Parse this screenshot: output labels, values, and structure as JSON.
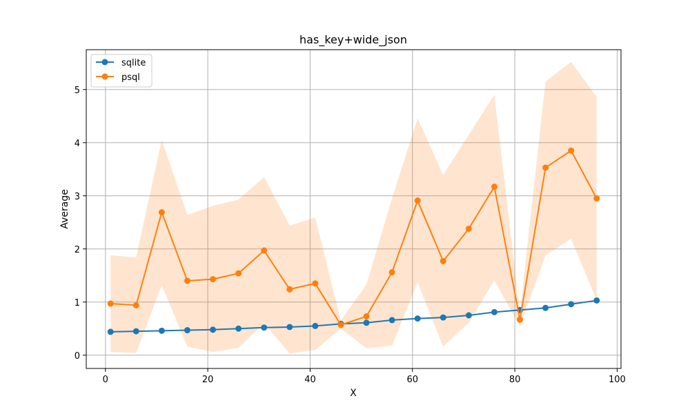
{
  "chart_data": {
    "type": "line",
    "title": "has_key+wide_json",
    "xlabel": "X",
    "ylabel": "Average",
    "xlim": [
      -3.75,
      100.75
    ],
    "ylim": [
      -0.25,
      5.75
    ],
    "xticks": [
      0,
      20,
      40,
      60,
      80,
      100
    ],
    "yticks": [
      0,
      1,
      2,
      3,
      4,
      5
    ],
    "grid": true,
    "legend_position": "top-left",
    "x": [
      1,
      6,
      11,
      16,
      21,
      26,
      31,
      36,
      41,
      46,
      51,
      56,
      61,
      66,
      71,
      76,
      81,
      86,
      91,
      96
    ],
    "series": [
      {
        "name": "sqlite",
        "color": "#1f77b4",
        "values": [
          0.44,
          0.45,
          0.46,
          0.47,
          0.48,
          0.5,
          0.52,
          0.53,
          0.55,
          0.59,
          0.61,
          0.66,
          0.69,
          0.71,
          0.75,
          0.81,
          0.85,
          0.89,
          0.96,
          1.03
        ]
      },
      {
        "name": "psql",
        "color": "#ff7f0e",
        "values": [
          0.97,
          0.94,
          2.69,
          1.4,
          1.43,
          1.54,
          1.97,
          1.24,
          1.35,
          0.57,
          0.73,
          1.56,
          2.91,
          1.77,
          2.38,
          3.17,
          0.67,
          3.53,
          3.85,
          2.95
        ],
        "band_upper": [
          1.88,
          1.84,
          4.05,
          2.64,
          2.81,
          2.93,
          3.35,
          2.44,
          2.59,
          0.65,
          1.33,
          2.95,
          4.46,
          3.39,
          4.15,
          4.9,
          0.8,
          5.15,
          5.52,
          4.86
        ],
        "band_lower": [
          0.06,
          0.04,
          1.32,
          0.16,
          0.06,
          0.14,
          0.6,
          0.03,
          0.1,
          0.5,
          0.13,
          0.18,
          1.37,
          0.16,
          0.61,
          1.41,
          0.54,
          1.88,
          2.19,
          1.03
        ]
      }
    ]
  }
}
